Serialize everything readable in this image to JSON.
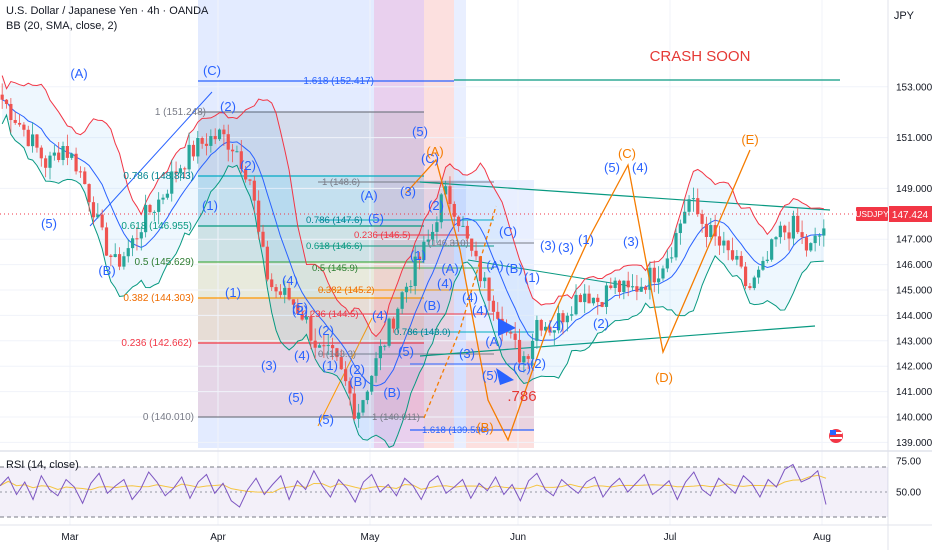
{
  "header": {
    "symbol_line": "U.S. Dollar / Japanese Yen · 4h · OANDA",
    "indicator_line": "BB (20, SMA, close, 2)"
  },
  "currency": "JPY",
  "rsi_label": "RSI (14, close)",
  "annotation": "CRASH SOON",
  "ratio_note": ".786",
  "price_tag": {
    "symbol": "USDJPY",
    "value": "147.424"
  },
  "colors": {
    "bull": "#26a69a",
    "bear": "#ef5350",
    "bb_upper": "#f23645",
    "bb_lower": "#089981",
    "bb_basis": "#2962ff",
    "rsi": "#7e57c2",
    "wave_blue": "#2962ff",
    "wave_orange": "#f57c00",
    "annotation": "#e53935"
  },
  "chart_data": [
    {
      "type": "candlestick",
      "title": "U.S. Dollar / Japanese Yen · 4h · OANDA",
      "ylim": [
        138.8,
        154.2
      ],
      "y_ticks": [
        "139.000",
        "140.000",
        "141.000",
        "142.000",
        "143.000",
        "144.000",
        "145.000",
        "146.000",
        "147.000",
        "149.000",
        "151.000",
        "153.000"
      ],
      "x_ticks": [
        "Mar",
        "Apr",
        "May",
        "Jun",
        "Jul",
        "Aug"
      ],
      "last_price": 147.424,
      "price_path": [
        [
          0,
          152.5
        ],
        [
          2,
          151.7
        ],
        [
          4,
          150.8
        ],
        [
          6,
          149.9
        ],
        [
          8,
          150.7
        ],
        [
          10,
          149.9
        ],
        [
          12,
          148.4
        ],
        [
          13,
          147.2
        ],
        [
          15,
          146.0
        ],
        [
          17,
          146.7
        ],
        [
          19,
          147.9
        ],
        [
          21,
          148.6
        ],
        [
          23,
          149.7
        ],
        [
          25,
          150.4
        ],
        [
          27,
          150.9
        ],
        [
          29,
          151.1
        ],
        [
          31,
          150.6
        ],
        [
          33,
          149.3
        ],
        [
          34,
          147.2
        ],
        [
          35,
          145.7
        ],
        [
          36,
          145.0
        ],
        [
          38,
          144.7
        ],
        [
          40,
          144.0
        ],
        [
          42,
          142.6
        ],
        [
          44,
          142.3
        ],
        [
          46,
          141.0
        ],
        [
          47,
          140.1
        ],
        [
          49,
          141.7
        ],
        [
          51,
          143.2
        ],
        [
          53,
          144.8
        ],
        [
          55,
          146.0
        ],
        [
          57,
          147.2
        ],
        [
          58,
          148.4
        ],
        [
          59,
          148.8
        ],
        [
          60,
          148.3
        ],
        [
          62,
          146.6
        ],
        [
          64,
          145.2
        ],
        [
          66,
          144.1
        ],
        [
          67,
          143.2
        ],
        [
          69,
          142.3
        ],
        [
          70,
          142.8
        ],
        [
          71,
          143.9
        ],
        [
          73,
          143.5
        ],
        [
          75,
          144.3
        ],
        [
          77,
          145.0
        ],
        [
          79,
          144.6
        ],
        [
          81,
          145.2
        ],
        [
          83,
          144.9
        ],
        [
          85,
          145.3
        ],
        [
          87,
          145.8
        ],
        [
          89,
          146.8
        ],
        [
          91,
          148.6
        ],
        [
          93,
          147.6
        ],
        [
          95,
          146.8
        ],
        [
          97,
          146.2
        ],
        [
          99,
          145.0
        ],
        [
          101,
          145.8
        ],
        [
          103,
          147.2
        ],
        [
          105,
          147.5
        ],
        [
          107,
          146.5
        ],
        [
          109,
          147.4
        ]
      ],
      "bollinger": {
        "period": 20,
        "source": "close",
        "stdev": 2
      },
      "fibonacci_left": [
        {
          "ratio": "1.618",
          "price": 152.417
        },
        {
          "ratio": "1",
          "price": 151.248
        },
        {
          "ratio": "0.786",
          "price": 148.843
        },
        {
          "ratio": "0.618",
          "price": 146.955
        },
        {
          "ratio": "0.5",
          "price": 145.629
        },
        {
          "ratio": "0.382",
          "price": 144.303
        },
        {
          "ratio": "0.236",
          "price": 142.662
        },
        {
          "ratio": "0",
          "price": 140.01
        }
      ],
      "fibonacci_right": [
        {
          "ratio": "1",
          "price": "148.6"
        },
        {
          "ratio": "0.786",
          "price": "147.6"
        },
        {
          "ratio": "0.618",
          "price": "146.6"
        },
        {
          "ratio": "0.5",
          "price": "145.9"
        },
        {
          "ratio": "0.382",
          "price": "145.2"
        },
        {
          "ratio": "0.236",
          "price": "144.5"
        },
        {
          "ratio": "0",
          "price": "143.3"
        },
        {
          "ratio": "0.236",
          "price": "146.5"
        },
        {
          "ratio": "",
          "price": "146.310"
        },
        {
          "ratio": "0.786",
          "price": "143.0"
        },
        {
          "ratio": "1",
          "price": 140.011
        },
        {
          "ratio": "1.618",
          "price": 139.53
        }
      ],
      "waves_blue": [
        "(A)",
        "(5)",
        "(B)",
        "(C)",
        "(2)",
        "(2)",
        "(1)",
        "(1)",
        "(2)",
        "(3)",
        "(4)",
        "(4)",
        "(5)",
        "(5)",
        "(A)",
        "(B)",
        "(3)",
        "(5)",
        "(C)",
        "(2)",
        "(4)",
        "(5)",
        "(B)",
        "(A)",
        "(B)",
        "(C)",
        "(5)",
        "(C)",
        "(1)",
        "(2)",
        "(3)",
        "(4)",
        "(3)",
        "(5)",
        "(1)",
        "(2)",
        "(3)",
        "(4)",
        "(5)",
        "(2)",
        "(A)",
        "(B)",
        "(3)",
        "(4)",
        "(1)",
        "(5)",
        "(1)",
        "(4)",
        "(4)",
        "(2)",
        "(A)"
      ],
      "waves_orange": [
        "(A)",
        "(B)",
        "(C)",
        "(D)",
        "(E)"
      ]
    },
    {
      "type": "line",
      "title": "RSI (14, close)",
      "ylim": [
        30,
        80
      ],
      "y_ticks": [
        "75.00",
        "50.00"
      ],
      "levels": [
        70,
        50,
        30
      ],
      "series": [
        {
          "values": [
            55,
            62,
            48,
            58,
            44,
            63,
            52,
            47,
            60,
            54,
            41,
            57,
            65,
            49,
            55,
            60,
            44,
            52,
            66,
            58,
            47,
            53,
            62,
            45,
            58,
            64,
            49,
            57,
            43,
            38,
            52,
            61,
            48,
            56,
            63,
            44,
            59,
            52,
            67,
            55,
            46,
            60,
            53,
            42,
            58,
            64,
            50,
            56,
            47,
            61,
            55,
            44,
            58,
            63,
            49,
            54,
            60,
            45,
            57,
            51,
            62,
            48,
            56,
            43,
            59,
            65,
            52,
            47,
            60,
            54,
            49,
            58,
            62,
            46,
            55,
            61,
            50,
            57,
            64,
            48,
            53,
            59,
            44,
            58,
            66,
            52,
            47,
            61,
            55,
            49,
            63,
            57,
            46,
            60,
            54,
            68,
            72,
            58,
            61,
            67,
            40
          ]
        }
      ]
    }
  ]
}
